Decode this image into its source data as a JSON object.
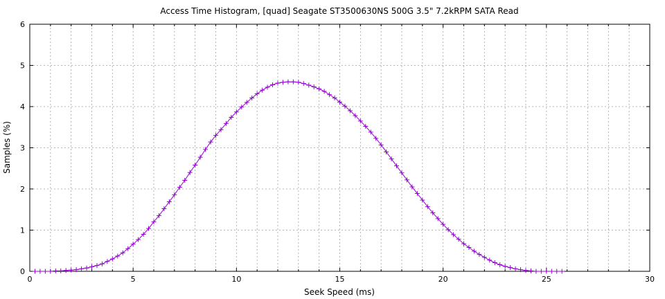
{
  "chart_data": {
    "type": "line",
    "title": "Access Time Histogram, [quad] Seagate ST3500630NS 500G 3.5\" 7.2kRPM SATA Read",
    "xlabel": "Seek Speed (ms)",
    "ylabel": "Samples (%)",
    "xlim": [
      0,
      30
    ],
    "ylim": [
      0,
      6
    ],
    "x_ticks": [
      0,
      5,
      10,
      15,
      20,
      25,
      30
    ],
    "y_ticks": [
      0,
      1,
      2,
      3,
      4,
      5,
      6
    ],
    "x_tick_labels": [
      "0",
      "5",
      "10",
      "15",
      "20",
      "25",
      "30"
    ],
    "y_tick_labels": [
      "0",
      "1",
      "2",
      "3",
      "4",
      "5",
      "6"
    ],
    "grid": true,
    "legend": "none",
    "marker": "plus",
    "series": [
      {
        "color": "#9400d3",
        "x": [
          0.25,
          0.5,
          0.75,
          1.0,
          1.25,
          1.5,
          1.75,
          2.0,
          2.25,
          2.5,
          2.75,
          3.0,
          3.25,
          3.5,
          3.75,
          4.0,
          4.25,
          4.5,
          4.75,
          5.0,
          5.25,
          5.5,
          5.75,
          6.0,
          6.25,
          6.5,
          6.75,
          7.0,
          7.25,
          7.5,
          7.75,
          8.0,
          8.25,
          8.5,
          8.75,
          9.0,
          9.25,
          9.5,
          9.75,
          10.0,
          10.25,
          10.5,
          10.75,
          11.0,
          11.25,
          11.5,
          11.75,
          12.0,
          12.25,
          12.5,
          12.75,
          13.0,
          13.25,
          13.5,
          13.75,
          14.0,
          14.25,
          14.5,
          14.75,
          15.0,
          15.25,
          15.5,
          15.75,
          16.0,
          16.25,
          16.5,
          16.75,
          17.0,
          17.25,
          17.5,
          17.75,
          18.0,
          18.25,
          18.5,
          18.75,
          19.0,
          19.25,
          19.5,
          19.75,
          20.0,
          20.25,
          20.5,
          20.75,
          21.0,
          21.25,
          21.5,
          21.75,
          22.0,
          22.25,
          22.5,
          22.75,
          23.0,
          23.25,
          23.5,
          23.75,
          24.0,
          24.25,
          24.5,
          24.75,
          25.0,
          25.25,
          25.5,
          25.75
        ],
        "y": [
          0.0,
          0.0,
          0.0,
          0.0,
          0.01,
          0.01,
          0.02,
          0.03,
          0.04,
          0.06,
          0.08,
          0.11,
          0.14,
          0.18,
          0.24,
          0.3,
          0.37,
          0.45,
          0.55,
          0.66,
          0.77,
          0.9,
          1.04,
          1.2,
          1.35,
          1.52,
          1.69,
          1.86,
          2.04,
          2.21,
          2.4,
          2.58,
          2.77,
          2.96,
          3.14,
          3.3,
          3.44,
          3.59,
          3.74,
          3.87,
          3.99,
          4.1,
          4.21,
          4.31,
          4.4,
          4.47,
          4.53,
          4.57,
          4.59,
          4.6,
          4.6,
          4.59,
          4.56,
          4.52,
          4.48,
          4.43,
          4.37,
          4.29,
          4.21,
          4.11,
          4.01,
          3.9,
          3.78,
          3.65,
          3.52,
          3.38,
          3.23,
          3.07,
          2.9,
          2.73,
          2.56,
          2.39,
          2.22,
          2.05,
          1.89,
          1.73,
          1.57,
          1.42,
          1.28,
          1.14,
          1.01,
          0.89,
          0.78,
          0.67,
          0.58,
          0.49,
          0.41,
          0.34,
          0.27,
          0.21,
          0.16,
          0.12,
          0.09,
          0.06,
          0.04,
          0.02,
          0.01,
          0.0,
          0.0,
          0.0,
          0.0,
          0.0,
          0.0
        ]
      }
    ]
  }
}
